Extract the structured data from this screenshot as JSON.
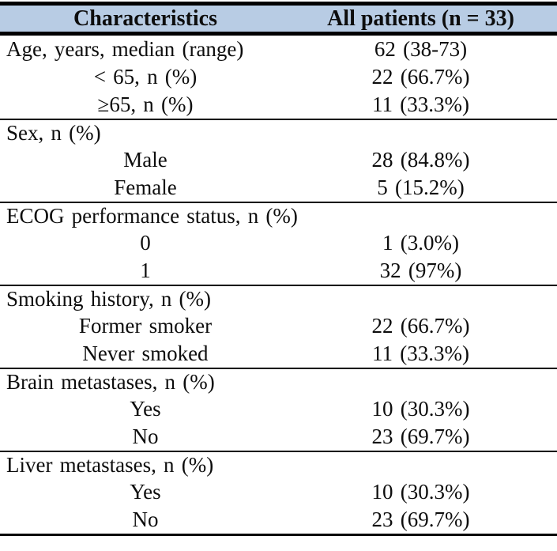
{
  "table": {
    "header": {
      "characteristics_label": "Characteristics",
      "patients_label": "All patients (n = 33)",
      "background_color": "#b8cce4"
    },
    "style": {
      "rule_color": "#000000",
      "text_color": "#0d0d0d"
    },
    "rows": [
      {
        "label": "Age, years, median (range)",
        "value": "62 (38-73)",
        "indent": "section"
      },
      {
        "label": "< 65, n (%)",
        "value": "22 (66.7%)",
        "indent": "sub"
      },
      {
        "label": "≥65, n (%)",
        "value": "11 (33.3%)",
        "indent": "sub"
      },
      {
        "label": "Sex, n (%)",
        "value": "",
        "indent": "section"
      },
      {
        "label": "Male",
        "value": "28 (84.8%)",
        "indent": "sub"
      },
      {
        "label": "Female",
        "value": "5 (15.2%)",
        "indent": "sub"
      },
      {
        "label": "ECOG performance status, n (%)",
        "value": "",
        "indent": "section"
      },
      {
        "label": "0",
        "value": "1 (3.0%)",
        "indent": "sub"
      },
      {
        "label": "1",
        "value": "32 (97%)",
        "indent": "sub"
      },
      {
        "label": "Smoking history, n (%)",
        "value": "",
        "indent": "section"
      },
      {
        "label": "Former smoker",
        "value": "22 (66.7%)",
        "indent": "sub"
      },
      {
        "label": "Never smoked",
        "value": "11 (33.3%)",
        "indent": "sub"
      },
      {
        "label": "Brain metastases, n (%)",
        "value": "",
        "indent": "section"
      },
      {
        "label": "Yes",
        "value": "10 (30.3%)",
        "indent": "sub"
      },
      {
        "label": "No",
        "value": "23 (69.7%)",
        "indent": "sub"
      },
      {
        "label": "Liver metastases, n (%)",
        "value": "",
        "indent": "section"
      },
      {
        "label": "Yes",
        "value": "10 (30.3%)",
        "indent": "sub"
      },
      {
        "label": "No",
        "value": "23 (69.7%)",
        "indent": "sub"
      }
    ]
  }
}
